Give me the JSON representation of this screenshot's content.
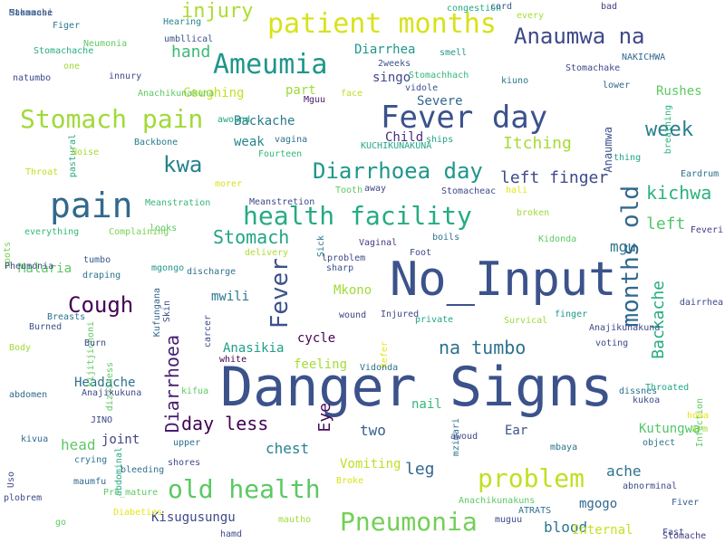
{
  "words": [
    {
      "text": "Danger Signs",
      "color": "#3b528b",
      "orientation": "horizontal"
    },
    {
      "text": "No_Input",
      "color": "#3b528b",
      "orientation": "horizontal"
    },
    {
      "text": "pain",
      "color": "#31688e",
      "orientation": "horizontal"
    },
    {
      "text": "Fever day",
      "color": "#3b528b",
      "orientation": "horizontal"
    },
    {
      "text": "patient months",
      "color": "#d8e219",
      "orientation": "horizontal"
    },
    {
      "text": "Ameumia",
      "color": "#1f968b",
      "orientation": "horizontal"
    },
    {
      "text": "Stomach pain",
      "color": "#a0da39",
      "orientation": "horizontal"
    },
    {
      "text": "health facility",
      "color": "#25ab82",
      "orientation": "horizontal"
    },
    {
      "text": "old health",
      "color": "#5cc863",
      "orientation": "horizontal"
    },
    {
      "text": "Pneumonia",
      "color": "#73d056",
      "orientation": "horizontal"
    },
    {
      "text": "problem",
      "color": "#c2df23",
      "orientation": "horizontal"
    },
    {
      "text": "Anaumwa na",
      "color": "#3e4989",
      "orientation": "horizontal"
    },
    {
      "text": "Diarrhoea day",
      "color": "#1f968b",
      "orientation": "horizontal"
    },
    {
      "text": "months old",
      "color": "#31688e",
      "orientation": "vertical"
    },
    {
      "text": "Fever",
      "color": "#3b528b",
      "orientation": "vertical"
    },
    {
      "text": "Cough",
      "color": "#440154",
      "orientation": "horizontal"
    },
    {
      "text": "kwa",
      "color": "#26828e",
      "orientation": "horizontal"
    },
    {
      "text": "Stomach",
      "color": "#20a486",
      "orientation": "horizontal"
    },
    {
      "text": "week",
      "color": "#277f8e",
      "orientation": "horizontal"
    },
    {
      "text": "kichwa",
      "color": "#2db27d",
      "orientation": "horizontal"
    },
    {
      "text": "left finger",
      "color": "#3e4a89",
      "orientation": "horizontal"
    },
    {
      "text": "day less",
      "color": "#440154",
      "orientation": "horizontal"
    },
    {
      "text": "Diarrhoea",
      "color": "#481f70",
      "orientation": "vertical"
    },
    {
      "text": "na tumbo",
      "color": "#2c728e",
      "orientation": "horizontal"
    },
    {
      "text": "Backache",
      "color": "#26ad81",
      "orientation": "vertical"
    },
    {
      "text": "injury",
      "color": "#addc30",
      "orientation": "horizontal"
    },
    {
      "text": "hand",
      "color": "#3aba76",
      "orientation": "horizontal"
    },
    {
      "text": "left",
      "color": "#52c569",
      "orientation": "horizontal"
    },
    {
      "text": "Itching",
      "color": "#a8db34",
      "orientation": "horizontal"
    },
    {
      "text": "Eye",
      "color": "#46085c",
      "orientation": "vertical"
    },
    {
      "text": "leg",
      "color": "#31688e",
      "orientation": "horizontal"
    },
    {
      "text": "blood",
      "color": "#2a788e",
      "orientation": "horizontal"
    },
    {
      "text": "Anaumwa",
      "color": "#3b528b",
      "orientation": "vertical"
    },
    {
      "text": "Kisugusungu",
      "color": "#3e4989",
      "orientation": "horizontal"
    },
    {
      "text": "chest",
      "color": "#26828e",
      "orientation": "horizontal"
    },
    {
      "text": "ache",
      "color": "#2c728e",
      "orientation": "horizontal"
    },
    {
      "text": "mgu",
      "color": "#2c728e",
      "orientation": "horizontal"
    },
    {
      "text": "two",
      "color": "#35608d",
      "orientation": "horizontal"
    },
    {
      "text": "head",
      "color": "#5ec962",
      "orientation": "horizontal"
    },
    {
      "text": "Malaria",
      "color": "#5ec962",
      "orientation": "horizontal"
    },
    {
      "text": "mwili",
      "color": "#2a768e",
      "orientation": "horizontal"
    },
    {
      "text": "Mkono",
      "color": "#a0da39",
      "orientation": "horizontal"
    },
    {
      "text": "cycle",
      "color": "#440154",
      "orientation": "horizontal"
    },
    {
      "text": "Anasikia",
      "color": "#1f9e89",
      "orientation": "horizontal"
    },
    {
      "text": "feeling",
      "color": "#a5db36",
      "orientation": "horizontal"
    },
    {
      "text": "Vomiting",
      "color": "#bddf26",
      "orientation": "horizontal"
    },
    {
      "text": "nail",
      "color": "#35b779",
      "orientation": "horizontal"
    },
    {
      "text": "Headache",
      "color": "#2c728e",
      "orientation": "horizontal"
    },
    {
      "text": "Backache",
      "color": "#287c8e",
      "orientation": "horizontal"
    },
    {
      "text": "joint",
      "color": "#414487",
      "orientation": "horizontal"
    },
    {
      "text": "Severe",
      "color": "#31688e",
      "orientation": "horizontal"
    },
    {
      "text": "Coughing",
      "color": "#c2df23",
      "orientation": "horizontal"
    },
    {
      "text": "part",
      "color": "#a0da39",
      "orientation": "horizontal"
    },
    {
      "text": "singo",
      "color": "#3e4989",
      "orientation": "horizontal"
    },
    {
      "text": "Diarrhea",
      "color": "#1f988b",
      "orientation": "horizontal"
    },
    {
      "text": "weak",
      "color": "#24868e",
      "orientation": "horizontal"
    },
    {
      "text": "Child",
      "color": "#472c7a",
      "orientation": "horizontal"
    },
    {
      "text": "Kutungwa",
      "color": "#52c569",
      "orientation": "horizontal"
    },
    {
      "text": "mgogo",
      "color": "#31688e",
      "orientation": "horizontal"
    },
    {
      "text": "Internal",
      "color": "#c8e020",
      "orientation": "horizontal"
    },
    {
      "text": "Ear",
      "color": "#3b528b",
      "orientation": "horizontal"
    },
    {
      "text": "Rushes",
      "color": "#5ec962",
      "orientation": "horizontal"
    },
    {
      "text": "Throated",
      "color": "#22a785",
      "orientation": "horizontal"
    },
    {
      "text": "Stomache",
      "color": "#443983",
      "orientation": "horizontal"
    },
    {
      "text": "Fiver",
      "color": "#34618d",
      "orientation": "horizontal"
    },
    {
      "text": "Figer",
      "color": "#2a788e",
      "orientation": "horizontal"
    },
    {
      "text": "Hearing",
      "color": "#25858e",
      "orientation": "horizontal"
    },
    {
      "text": "congestion",
      "color": "#25ab82",
      "orientation": "horizontal"
    },
    {
      "text": "cord",
      "color": "#38598c",
      "orientation": "horizontal"
    },
    {
      "text": "bad",
      "color": "#433e85",
      "orientation": "horizontal"
    },
    {
      "text": "every",
      "color": "#a8db34",
      "orientation": "horizontal"
    },
    {
      "text": "Stomachache",
      "color": "#25ab82",
      "orientation": "horizontal"
    },
    {
      "text": "Neumonia",
      "color": "#5ec962",
      "orientation": "horizontal"
    },
    {
      "text": "umbllical",
      "color": "#3b528b",
      "orientation": "horizontal"
    },
    {
      "text": "smell",
      "color": "#1f988b",
      "orientation": "horizontal"
    },
    {
      "text": "thing",
      "color": "#20a486",
      "orientation": "horizontal"
    },
    {
      "text": "one",
      "color": "#a0da39",
      "orientation": "horizontal"
    },
    {
      "text": "2weeks",
      "color": "#3b528b",
      "orientation": "horizontal"
    },
    {
      "text": "NAKICHWA",
      "color": "#31688e",
      "orientation": "horizontal"
    },
    {
      "text": "natumbo",
      "color": "#3e4989",
      "orientation": "horizontal"
    },
    {
      "text": "innury",
      "color": "#3e4989",
      "orientation": "horizontal"
    },
    {
      "text": "Stomachake",
      "color": "#3e4989",
      "orientation": "horizontal"
    },
    {
      "text": "Stomachhach",
      "color": "#35b779",
      "orientation": "horizontal"
    },
    {
      "text": "Anachikunakuna",
      "color": "#5ec962",
      "orientation": "horizontal"
    },
    {
      "text": "face",
      "color": "#bddf26",
      "orientation": "horizontal"
    },
    {
      "text": "Mguu",
      "color": "#481a6c",
      "orientation": "horizontal"
    },
    {
      "text": "vidole",
      "color": "#3b528b",
      "orientation": "horizontal"
    },
    {
      "text": "kiuno",
      "color": "#2a788e",
      "orientation": "horizontal"
    },
    {
      "text": "lower",
      "color": "#31688e",
      "orientation": "horizontal"
    },
    {
      "text": "breathing",
      "color": "#2db27d",
      "orientation": "vertical"
    },
    {
      "text": "awound",
      "color": "#20a486",
      "orientation": "horizontal"
    },
    {
      "text": "pastural",
      "color": "#25ab82",
      "orientation": "vertical"
    },
    {
      "text": "vagina",
      "color": "#2c728e",
      "orientation": "horizontal"
    },
    {
      "text": "ships",
      "color": "#20a486",
      "orientation": "horizontal"
    },
    {
      "text": "Backbone",
      "color": "#287c8e",
      "orientation": "horizontal"
    },
    {
      "text": "KUCHIKUNAKUNA",
      "color": "#22a785",
      "orientation": "horizontal"
    },
    {
      "text": "Noise",
      "color": "#a0da39",
      "orientation": "horizontal"
    },
    {
      "text": "Fourteen",
      "color": "#35b779",
      "orientation": "horizontal"
    },
    {
      "text": "Throat",
      "color": "#c2df23",
      "orientation": "horizontal"
    },
    {
      "text": "Eardrum",
      "color": "#2c728e",
      "orientation": "horizontal"
    },
    {
      "text": "morer",
      "color": "#d8e219",
      "orientation": "horizontal"
    },
    {
      "text": "Tooth",
      "color": "#5ec962",
      "orientation": "horizontal"
    },
    {
      "text": "away",
      "color": "#3e4989",
      "orientation": "horizontal"
    },
    {
      "text": "Stomacheac",
      "color": "#3e4989",
      "orientation": "horizontal"
    },
    {
      "text": "hali",
      "color": "#e5e419",
      "orientation": "horizontal"
    },
    {
      "text": "Meanstration",
      "color": "#35b779",
      "orientation": "horizontal"
    },
    {
      "text": "Meanstretion",
      "color": "#3e4989",
      "orientation": "horizontal"
    },
    {
      "text": "broken",
      "color": "#a0da39",
      "orientation": "horizontal"
    },
    {
      "text": "everything",
      "color": "#35b779",
      "orientation": "horizontal"
    },
    {
      "text": "Complaining",
      "color": "#7ad151",
      "orientation": "horizontal"
    },
    {
      "text": "looks",
      "color": "#5ec962",
      "orientation": "horizontal"
    },
    {
      "text": "Sick",
      "color": "#2a788e",
      "orientation": "vertical"
    },
    {
      "text": "boils",
      "color": "#2c728e",
      "orientation": "horizontal"
    },
    {
      "text": "Foot",
      "color": "#3e4989",
      "orientation": "horizontal"
    },
    {
      "text": "Kidonda",
      "color": "#5ec962",
      "orientation": "horizontal"
    },
    {
      "text": "Feveri",
      "color": "#443983",
      "orientation": "horizontal"
    },
    {
      "text": "spots",
      "color": "#7ad151",
      "orientation": "vertical"
    },
    {
      "text": "Vaginal",
      "color": "#433e85",
      "orientation": "horizontal"
    },
    {
      "text": "delivery",
      "color": "#addc30",
      "orientation": "horizontal"
    },
    {
      "text": "lproblem",
      "color": "#3e4989",
      "orientation": "horizontal"
    },
    {
      "text": "tumbo",
      "color": "#38598c",
      "orientation": "horizontal"
    },
    {
      "text": "mgongo",
      "color": "#1f988b",
      "orientation": "horizontal"
    },
    {
      "text": "discharge",
      "color": "#2c728e",
      "orientation": "horizontal"
    },
    {
      "text": "sharp",
      "color": "#3b528b",
      "orientation": "horizontal"
    },
    {
      "text": "Pheumonia",
      "color": "#3e4989",
      "orientation": "horizontal"
    },
    {
      "text": "draping",
      "color": "#2c728e",
      "orientation": "horizontal"
    },
    {
      "text": "Kufungana",
      "color": "#31688e",
      "orientation": "vertical"
    },
    {
      "text": "Skin",
      "color": "#3e4989",
      "orientation": "vertical"
    },
    {
      "text": "wound",
      "color": "#414487",
      "orientation": "horizontal"
    },
    {
      "text": "Injured",
      "color": "#3e4989",
      "orientation": "horizontal"
    },
    {
      "text": "finger",
      "color": "#1f988b",
      "orientation": "horizontal"
    },
    {
      "text": "dairrhea",
      "color": "#3e4989",
      "orientation": "horizontal"
    },
    {
      "text": "Breasts",
      "color": "#2c728e",
      "orientation": "horizontal"
    },
    {
      "text": "kijitjichoni",
      "color": "#5ec962",
      "orientation": "vertical"
    },
    {
      "text": "carcer",
      "color": "#3e4989",
      "orientation": "vertical"
    },
    {
      "text": "private",
      "color": "#20a486",
      "orientation": "horizontal"
    },
    {
      "text": "Survical",
      "color": "#a0da39",
      "orientation": "horizontal"
    },
    {
      "text": "Anajikunakuna",
      "color": "#3e4989",
      "orientation": "horizontal"
    },
    {
      "text": "Burned",
      "color": "#3b528b",
      "orientation": "horizontal"
    },
    {
      "text": "Burn",
      "color": "#3e4989",
      "orientation": "horizontal"
    },
    {
      "text": "Refer",
      "color": "#e5e419",
      "orientation": "vertical"
    },
    {
      "text": "voting",
      "color": "#3e4989",
      "orientation": "horizontal"
    },
    {
      "text": "Body",
      "color": "#a0da39",
      "orientation": "horizontal"
    },
    {
      "text": "white",
      "color": "#440154",
      "orientation": "horizontal"
    },
    {
      "text": "dizziness",
      "color": "#5ec962",
      "orientation": "vertical"
    },
    {
      "text": "Vidonda",
      "color": "#2c728e",
      "orientation": "horizontal"
    },
    {
      "text": "abdomen",
      "color": "#31688e",
      "orientation": "horizontal"
    },
    {
      "text": "Anajikukuna",
      "color": "#3e4989",
      "orientation": "horizontal"
    },
    {
      "text": "kifua",
      "color": "#5ec962",
      "orientation": "horizontal"
    },
    {
      "text": "dissnes",
      "color": "#2c728e",
      "orientation": "horizontal"
    },
    {
      "text": "kukoa",
      "color": "#3e4989",
      "orientation": "horizontal"
    },
    {
      "text": "Infection",
      "color": "#5ec962",
      "orientation": "vertical"
    },
    {
      "text": "homa",
      "color": "#e5e419",
      "orientation": "horizontal"
    },
    {
      "text": "JINO",
      "color": "#3e4989",
      "orientation": "horizontal"
    },
    {
      "text": "mzimari",
      "color": "#2c728e",
      "orientation": "vertical"
    },
    {
      "text": "awoud",
      "color": "#3e4989",
      "orientation": "horizontal"
    },
    {
      "text": "object",
      "color": "#2c728e",
      "orientation": "horizontal"
    },
    {
      "text": "arm",
      "color": "#a0da39",
      "orientation": "horizontal"
    },
    {
      "text": "kivua",
      "color": "#31688e",
      "orientation": "horizontal"
    },
    {
      "text": "abdominal",
      "color": "#25ab82",
      "orientation": "vertical"
    },
    {
      "text": "upper",
      "color": "#2c728e",
      "orientation": "horizontal"
    },
    {
      "text": "crying",
      "color": "#2c728e",
      "orientation": "horizontal"
    },
    {
      "text": "shores",
      "color": "#3e4989",
      "orientation": "horizontal"
    },
    {
      "text": "mbaya",
      "color": "#2c728e",
      "orientation": "horizontal"
    },
    {
      "text": "abnorminal",
      "color": "#3e4989",
      "orientation": "horizontal"
    },
    {
      "text": "Uso",
      "color": "#3e4989",
      "orientation": "vertical"
    },
    {
      "text": "maumfu",
      "color": "#31688e",
      "orientation": "horizontal"
    },
    {
      "text": "bleeding",
      "color": "#2c728e",
      "orientation": "horizontal"
    },
    {
      "text": "Pre_mature",
      "color": "#5ec962",
      "orientation": "horizontal"
    },
    {
      "text": "Broke",
      "color": "#d8e219",
      "orientation": "horizontal"
    },
    {
      "text": "plobrem",
      "color": "#3e4989",
      "orientation": "horizontal"
    },
    {
      "text": "Anachikunakuns",
      "color": "#5ec962",
      "orientation": "horizontal"
    },
    {
      "text": "Diabeties",
      "color": "#e5e419",
      "orientation": "horizontal"
    },
    {
      "text": "ATRATS",
      "color": "#2c728e",
      "orientation": "horizontal"
    },
    {
      "text": "muguu",
      "color": "#3e4989",
      "orientation": "horizontal"
    },
    {
      "text": "mautho",
      "color": "#a0da39",
      "orientation": "horizontal"
    },
    {
      "text": "go",
      "color": "#5ec962",
      "orientation": "horizontal"
    },
    {
      "text": "hamd",
      "color": "#3e4989",
      "orientation": "horizontal"
    },
    {
      "text": "Fast",
      "color": "#3e4989",
      "orientation": "horizontal"
    },
    {
      "text": "Makamasi",
      "color": "#2c728e",
      "orientation": "horizontal"
    },
    {
      "text": "Stomache",
      "color": "#3e4989",
      "orientation": "horizontal"
    }
  ]
}
